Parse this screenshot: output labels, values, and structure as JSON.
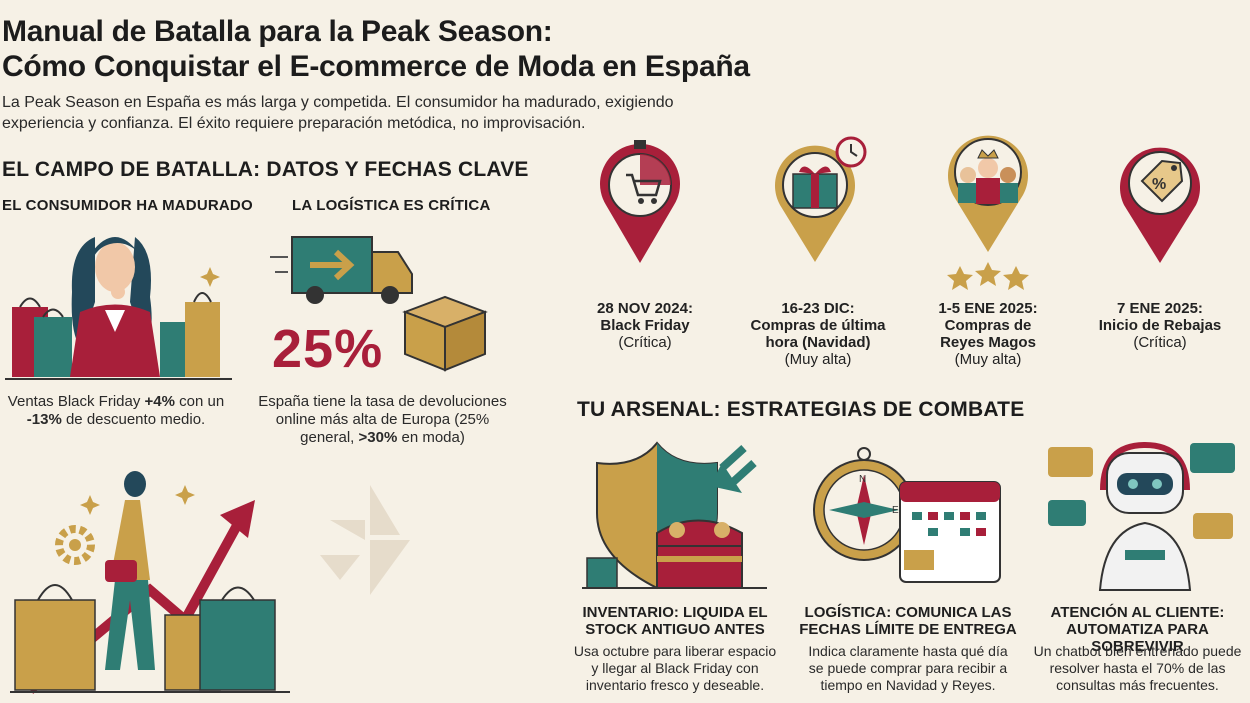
{
  "header": {
    "title_line1": "Manual de Batalla para la Peak Season:",
    "title_line2": "Cómo Conquistar el E-commerce de Moda en España",
    "intro_line1": "La Peak Season en España es más larga y competida. El consumidor ha madurado, exigiendo",
    "intro_line2": "experiencia y confianza. El éxito requiere preparación metódica, no improvisación."
  },
  "battlefield": {
    "heading": "EL CAMPO DE BATALLA: DATOS Y FECHAS CLAVE",
    "consumer": {
      "heading": "EL CONSUMIDOR HA MADURADO",
      "text_a": "Ventas Black Friday ",
      "text_b": "+4%",
      "text_c": " con un",
      "text_d": "-13%",
      "text_e": " de descuento medio."
    },
    "logistics": {
      "heading": "LA LOGÍSTICA ES CRÍTICA",
      "percent": "25%",
      "text_a": "España tiene la tasa de devoluciones",
      "text_b": "online más alta de Europa (25%",
      "text_c": "general, ",
      "text_d": ">30%",
      "text_e": " en moda)"
    }
  },
  "dates": [
    {
      "date": "28 NOV 2024:",
      "name": "Black Friday",
      "name2": "",
      "priority": "(Crítica)"
    },
    {
      "date": "16-23 DIC:",
      "name": "Compras de última",
      "name2": "hora (Navidad)",
      "priority": "(Muy alta)"
    },
    {
      "date": "1-5 ENE 2025:",
      "name": "Compras de",
      "name2": "Reyes Magos",
      "priority": "(Muy alta)"
    },
    {
      "date": "7 ENE 2025:",
      "name": "Inicio de Rebajas",
      "name2": "",
      "priority": "(Crítica)"
    }
  ],
  "arsenal": {
    "heading": "TU ARSENAL: ESTRATEGIAS DE COMBATE",
    "strategies": [
      {
        "title1": "INVENTARIO: LIQUIDA EL",
        "title2": "STOCK ANTIGUO ANTES",
        "desc1": "Usa octubre para liberar espacio",
        "desc2": "y llegar al Black Friday con",
        "desc3": "inventario fresco y deseable."
      },
      {
        "title1": "LOGÍSTICA: COMUNICA LAS",
        "title2": "FECHAS LÍMITE DE ENTREGA",
        "desc1": "Indica claramente hasta qué día",
        "desc2": "se puede comprar para recibir a",
        "desc3": "tiempo en Navidad y Reyes."
      },
      {
        "title1": "ATENCIÓN AL CLIENTE:",
        "title2": "AUTOMATIZA PARA SOBREVIVIR",
        "desc1": "Un chatbot bien entrenado puede",
        "desc2": "resolver hasta el 70% de las",
        "desc3": "consultas más frecuentes."
      }
    ]
  },
  "colors": {
    "crimson": "#a81f3a",
    "gold": "#c9a04a",
    "teal": "#2f7d74",
    "background": "#f6f1e6"
  },
  "icons": [
    "woman-thinking-icon",
    "shopping-bags-icon",
    "delivery-truck-icon",
    "package-box-icon",
    "stopwatch-cart-icon",
    "gift-clock-icon",
    "three-kings-icon",
    "discount-tag-icon",
    "trend-arrow-icon",
    "shopper-woman-icon",
    "gear-icon",
    "shield-icon",
    "treasure-chest-icon",
    "compass-icon",
    "calendar-icon",
    "robot-chatbot-icon"
  ]
}
